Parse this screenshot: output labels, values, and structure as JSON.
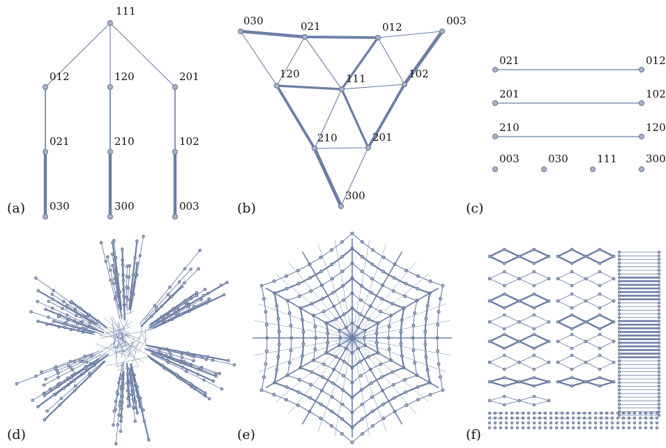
{
  "panels": [
    {
      "id": "a",
      "label": "(a)"
    },
    {
      "id": "b",
      "label": "(b)"
    },
    {
      "id": "c",
      "label": "(c)"
    },
    {
      "id": "d",
      "label": "(d)"
    },
    {
      "id": "e",
      "label": "(e)"
    },
    {
      "id": "f",
      "label": "(f)"
    }
  ],
  "panel_a": {
    "nodes": [
      {
        "id": "111",
        "label": "111"
      },
      {
        "id": "012",
        "label": "012"
      },
      {
        "id": "120",
        "label": "120"
      },
      {
        "id": "201",
        "label": "201"
      },
      {
        "id": "021",
        "label": "021"
      },
      {
        "id": "210",
        "label": "210"
      },
      {
        "id": "102",
        "label": "102"
      },
      {
        "id": "030",
        "label": "030"
      },
      {
        "id": "300",
        "label": "300"
      },
      {
        "id": "003",
        "label": "003"
      }
    ],
    "edges": [
      {
        "from": "111",
        "to": "012",
        "weight": 1
      },
      {
        "from": "111",
        "to": "120",
        "weight": 1
      },
      {
        "from": "111",
        "to": "201",
        "weight": 1
      },
      {
        "from": "012",
        "to": "021",
        "weight": 1.5
      },
      {
        "from": "120",
        "to": "210",
        "weight": 1.5
      },
      {
        "from": "201",
        "to": "102",
        "weight": 1.5
      },
      {
        "from": "021",
        "to": "030",
        "weight": 4
      },
      {
        "from": "210",
        "to": "300",
        "weight": 4
      },
      {
        "from": "102",
        "to": "003",
        "weight": 4
      }
    ]
  },
  "panel_b": {
    "nodes": [
      {
        "id": "030",
        "label": "030"
      },
      {
        "id": "021",
        "label": "021"
      },
      {
        "id": "012",
        "label": "012"
      },
      {
        "id": "003",
        "label": "003"
      },
      {
        "id": "120",
        "label": "120"
      },
      {
        "id": "111",
        "label": "111"
      },
      {
        "id": "102",
        "label": "102"
      },
      {
        "id": "210",
        "label": "210"
      },
      {
        "id": "201",
        "label": "201"
      },
      {
        "id": "300",
        "label": "300"
      }
    ],
    "edges": [
      {
        "from": "030",
        "to": "021",
        "weight": 4
      },
      {
        "from": "021",
        "to": "012",
        "weight": 3.5
      },
      {
        "from": "012",
        "to": "003",
        "weight": 1
      },
      {
        "from": "003",
        "to": "102",
        "weight": 4.5
      },
      {
        "from": "102",
        "to": "201",
        "weight": 3.5
      },
      {
        "from": "201",
        "to": "300",
        "weight": 1
      },
      {
        "from": "300",
        "to": "210",
        "weight": 4.5
      },
      {
        "from": "210",
        "to": "120",
        "weight": 3.5
      },
      {
        "from": "120",
        "to": "030",
        "weight": 1
      },
      {
        "from": "021",
        "to": "120",
        "weight": 1
      },
      {
        "from": "012",
        "to": "102",
        "weight": 1
      },
      {
        "from": "210",
        "to": "201",
        "weight": 1
      },
      {
        "from": "021",
        "to": "111",
        "weight": 1
      },
      {
        "from": "012",
        "to": "111",
        "weight": 3
      },
      {
        "from": "120",
        "to": "111",
        "weight": 3
      },
      {
        "from": "102",
        "to": "111",
        "weight": 1
      },
      {
        "from": "210",
        "to": "111",
        "weight": 1
      },
      {
        "from": "201",
        "to": "111",
        "weight": 3
      }
    ]
  },
  "panel_c": {
    "pairs": [
      {
        "left": "021",
        "right": "012"
      },
      {
        "left": "201",
        "right": "102"
      },
      {
        "left": "210",
        "right": "120"
      }
    ],
    "singles": [
      "003",
      "030",
      "111",
      "300"
    ]
  }
}
